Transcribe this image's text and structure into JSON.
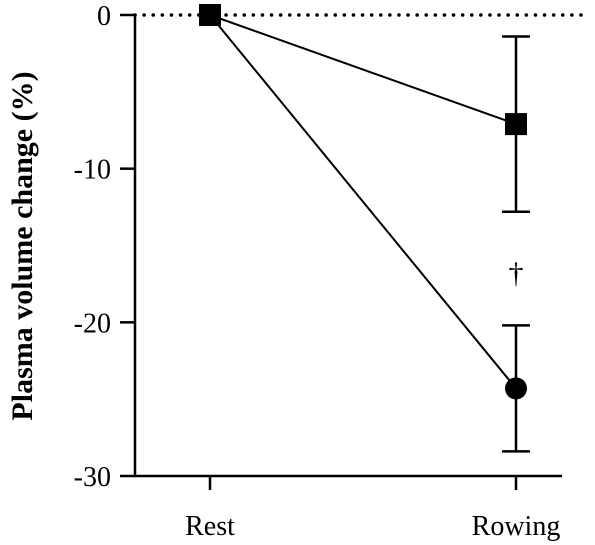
{
  "chart_data": {
    "type": "line",
    "title": "",
    "xlabel": "",
    "ylabel": "Plasma volume change (%)",
    "categories": [
      "Rest",
      "Rowing"
    ],
    "ylim": [
      -30,
      0
    ],
    "yticks": [
      0,
      -10,
      -20,
      -30
    ],
    "ytick_labels": [
      "0",
      "-10",
      "-20",
      "-30"
    ],
    "reference_line": {
      "y": 0,
      "style": "dotted"
    },
    "grid": false,
    "legend": "none",
    "series": [
      {
        "marker": "square",
        "color": "#000000",
        "values": [
          0,
          -7.1
        ],
        "error": [
          0,
          5.7
        ]
      },
      {
        "marker": "circle",
        "color": "#000000",
        "values": [
          0,
          -24.3
        ],
        "error": [
          0,
          4.1
        ]
      }
    ],
    "annotations": [
      {
        "text": "†",
        "category": "Rowing",
        "y": -16.8
      }
    ]
  }
}
